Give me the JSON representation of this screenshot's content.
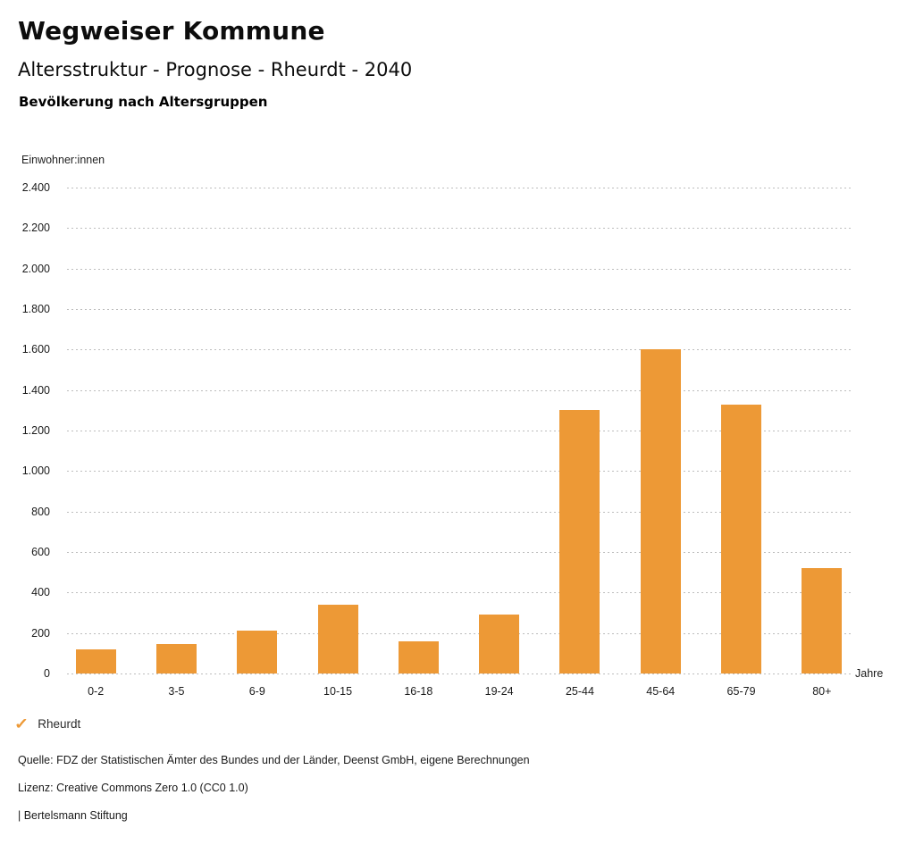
{
  "header": {
    "site_title": "Wegweiser Kommune",
    "chart_title": "Altersstruktur - Prognose - Rheurdt - 2040",
    "chart_heading": "Bevölkerung nach Altersgruppen"
  },
  "chart_data": {
    "type": "bar",
    "title": "Altersstruktur - Prognose - Rheurdt - 2040",
    "subtitle": "Bevölkerung nach Altersgruppen",
    "categories": [
      "0-2",
      "3-5",
      "6-9",
      "10-15",
      "16-18",
      "19-24",
      "25-44",
      "45-64",
      "65-79",
      "80+"
    ],
    "series": [
      {
        "name": "Rheurdt",
        "values": [
          120,
          145,
          210,
          340,
          160,
          290,
          1300,
          1600,
          1330,
          520
        ]
      }
    ],
    "xlabel": "Jahre",
    "ylabel": "Einwohner:innen",
    "ylim": [
      0,
      2400
    ],
    "ytick_step": 200,
    "ytick_labels": [
      "2.400",
      "2.200",
      "2.000",
      "1.800",
      "1.600",
      "1.400",
      "1.200",
      "1.000",
      "800",
      "600",
      "400",
      "200",
      "0"
    ],
    "grid": "horizontal-dotted",
    "legend_position": "bottom-left",
    "bar_color": "#ED9936"
  },
  "legend": {
    "check_icon": "✓",
    "label": "Rheurdt"
  },
  "footer": {
    "source": "Quelle: FDZ der Statistischen Ämter des Bundes und der Länder, Deenst GmbH, eigene Berechnungen",
    "license": "Lizenz: Creative Commons Zero 1.0 (CC0 1.0)",
    "attribution": "| Bertelsmann Stiftung"
  },
  "colors": {
    "bar": "#ED9936",
    "grid": "#BDBDBD",
    "text": "#1A1A1A"
  }
}
